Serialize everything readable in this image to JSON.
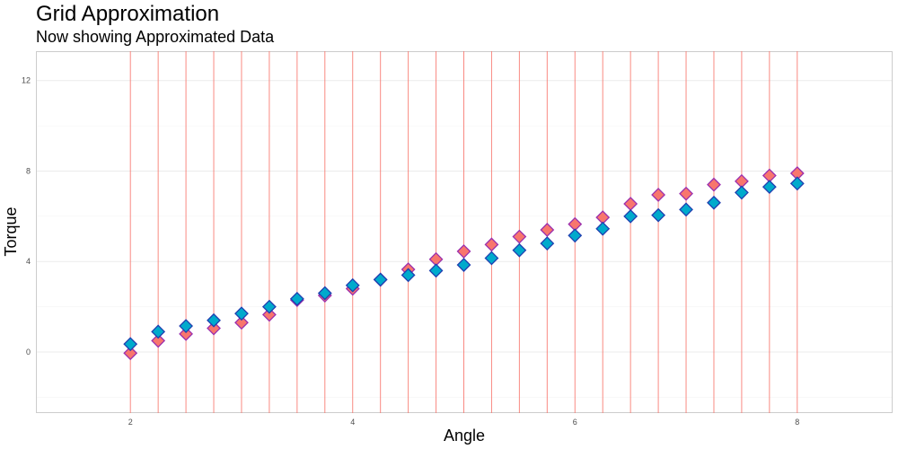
{
  "chart_data": {
    "type": "scatter",
    "title": "Grid Approximation",
    "subtitle": "Now showing Approximated Data",
    "xlabel": "Angle",
    "ylabel": "Torque",
    "xlim": [
      1.15,
      8.85
    ],
    "ylim": [
      -2.7,
      13.3
    ],
    "x_ticks": [
      2,
      4,
      6,
      8
    ],
    "y_ticks": [
      0,
      4,
      8,
      12
    ],
    "x_tick_labels": [
      "2",
      "4",
      "6",
      "8"
    ],
    "y_tick_labels": [
      "0",
      "4",
      "8",
      "12"
    ],
    "grid": true,
    "vertical_reference_lines": [
      2,
      2.25,
      2.5,
      2.75,
      3,
      3.25,
      3.5,
      3.75,
      4,
      4.25,
      4.5,
      4.75,
      5,
      5.25,
      5.5,
      5.75,
      6,
      6.25,
      6.5,
      6.75,
      7,
      7.25,
      7.5,
      7.75,
      8
    ],
    "series": [
      {
        "color": "#f8766d",
        "marker": "diamond",
        "x": [
          2,
          2.25,
          2.5,
          2.75,
          3,
          3.25,
          3.5,
          3.75,
          4,
          4.25,
          4.5,
          4.75,
          5,
          5.25,
          5.5,
          5.75,
          6,
          6.25,
          6.5,
          6.75,
          7,
          7.25,
          7.5,
          7.75,
          8
        ],
        "values": [
          -0.05,
          0.5,
          0.8,
          1.05,
          1.3,
          1.65,
          2.3,
          2.5,
          2.8,
          3.2,
          3.65,
          4.1,
          4.45,
          4.75,
          5.1,
          5.4,
          5.65,
          5.95,
          6.55,
          6.95,
          7.0,
          7.4,
          7.55,
          7.8,
          7.9
        ]
      },
      {
        "color": "#00aacc",
        "marker": "diamond",
        "x": [
          2,
          2.25,
          2.5,
          2.75,
          3,
          3.25,
          3.5,
          3.75,
          4,
          4.25,
          4.5,
          4.75,
          5,
          5.25,
          5.5,
          5.75,
          6,
          6.25,
          6.5,
          6.75,
          7,
          7.25,
          7.5,
          7.75,
          8
        ],
        "values": [
          0.35,
          0.9,
          1.15,
          1.4,
          1.7,
          2.0,
          2.35,
          2.6,
          2.95,
          3.2,
          3.4,
          3.6,
          3.85,
          4.15,
          4.5,
          4.8,
          5.15,
          5.45,
          6.0,
          6.05,
          6.3,
          6.6,
          7.05,
          7.3,
          7.45
        ]
      }
    ]
  }
}
